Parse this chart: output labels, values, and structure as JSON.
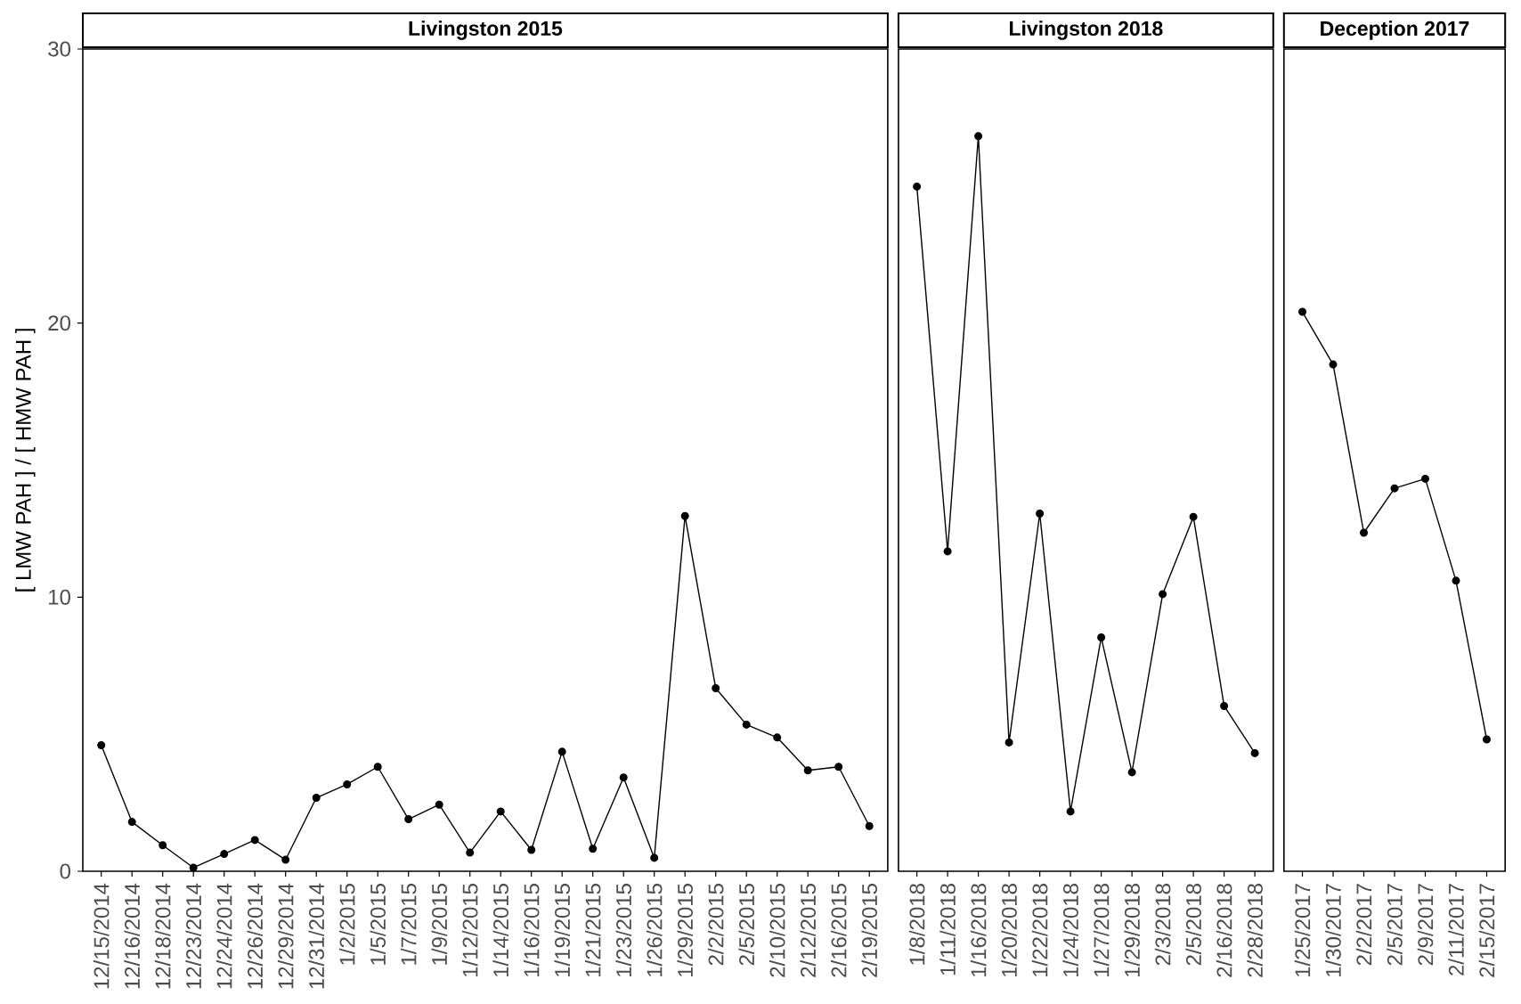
{
  "chart_data": [
    {
      "type": "line",
      "title": "Livingston 2015",
      "ylabel": "[ LMW PAH ] / [ HMW PAH ]",
      "color": "#000000",
      "marker": "circle",
      "ylim": [
        0,
        30
      ],
      "yticks": [
        0,
        10,
        20,
        30
      ],
      "categories": [
        "12/15/2014",
        "12/16/2014",
        "12/18/2014",
        "12/23/2014",
        "12/24/2014",
        "12/26/2014",
        "12/29/2014",
        "12/31/2014",
        "1/2/2015",
        "1/5/2015",
        "1/7/2015",
        "1/9/2015",
        "1/12/2015",
        "1/14/2015",
        "1/16/2015",
        "1/19/2015",
        "1/21/2015",
        "1/23/2015",
        "1/26/2015",
        "1/29/2015",
        "2/2/2015",
        "2/5/2015",
        "2/10/2015",
        "2/12/2015",
        "2/16/2015",
        "2/19/2015"
      ],
      "values": [
        4.6,
        1.8,
        0.95,
        0.13,
        0.63,
        1.14,
        0.42,
        2.68,
        3.17,
        3.81,
        1.9,
        2.43,
        0.68,
        2.18,
        0.78,
        4.36,
        0.82,
        3.42,
        0.49,
        12.96,
        6.68,
        5.35,
        4.88,
        3.68,
        3.81,
        1.65
      ]
    },
    {
      "type": "line",
      "title": "Livingston 2018",
      "color": "#000000",
      "marker": "circle",
      "ylim": [
        0,
        30
      ],
      "tick_labels": "x",
      "categories": [
        "1/8/2018",
        "1/11/2018",
        "1/16/2018",
        "1/20/2018",
        "1/22/2018",
        "1/24/2018",
        "1/27/2018",
        "1/29/2018",
        "2/3/2018",
        "2/5/2018",
        "2/16/2018",
        "2/28/2018"
      ],
      "values": [
        24.98,
        11.67,
        26.82,
        4.7,
        13.05,
        2.18,
        8.53,
        3.61,
        10.11,
        12.93,
        6.03,
        4.31
      ]
    },
    {
      "type": "line",
      "title": "Deception 2017",
      "color": "#000000",
      "marker": "circle",
      "ylim": [
        0,
        30
      ],
      "tick_labels": "x",
      "categories": [
        "1/25/2017",
        "1/30/2017",
        "2/2/2017",
        "2/5/2017",
        "2/9/2017",
        "2/11/2017",
        "2/15/2017"
      ],
      "values": [
        20.41,
        18.49,
        12.35,
        13.97,
        14.32,
        10.6,
        4.81
      ]
    }
  ]
}
